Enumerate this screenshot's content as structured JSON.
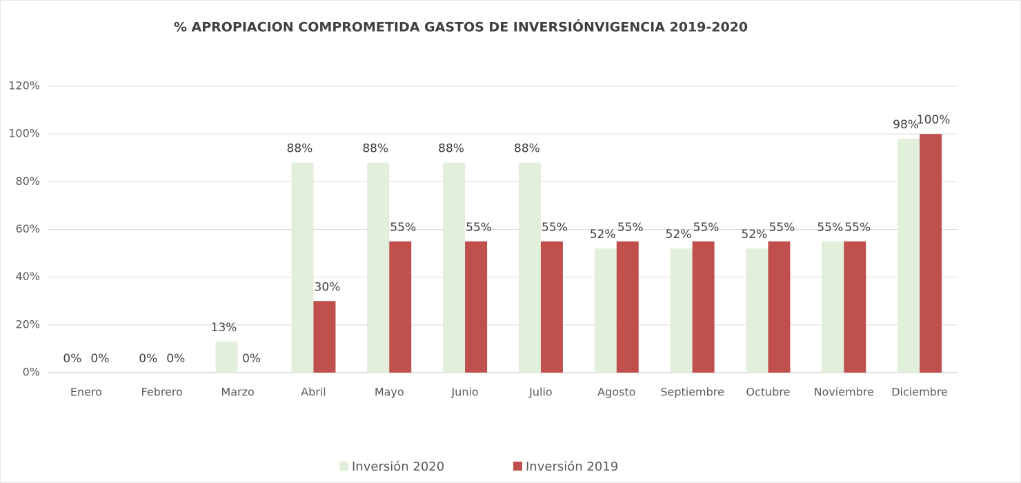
{
  "chart_data": {
    "type": "bar",
    "title": "% APROPIACION COMPROMETIDA GASTOS DE INVERSIÓNVIGENCIA 2019-2020",
    "categories": [
      "Enero",
      "Febrero",
      "Marzo",
      "Abril",
      "Mayo",
      "Junio",
      "Julio",
      "Agosto",
      "Septiembre",
      "Octubre",
      "Noviembre",
      "Diciembre"
    ],
    "series": [
      {
        "name": "Inversión 2020",
        "color": "#e2efda",
        "values": [
          0,
          0,
          13,
          88,
          88,
          88,
          88,
          52,
          52,
          52,
          55,
          98
        ],
        "value_labels": [
          "0%",
          "0%",
          "13%",
          "88%",
          "88%",
          "88%",
          "88%",
          "52%",
          "52%",
          "52%",
          "55%",
          "98%"
        ]
      },
      {
        "name": "Inversión 2019",
        "color": "#c0504d",
        "values": [
          0,
          0,
          0,
          30,
          55,
          55,
          55,
          55,
          55,
          55,
          55,
          100
        ],
        "value_labels": [
          "0%",
          "0%",
          "0%",
          "30%",
          "55%",
          "55%",
          "55%",
          "55%",
          "55%",
          "55%",
          "55%",
          "100%"
        ]
      }
    ],
    "ylim": [
      0,
      120
    ],
    "yticks": [
      {
        "value": 0,
        "label": "0%"
      },
      {
        "value": 20,
        "label": "20%"
      },
      {
        "value": 40,
        "label": "40%"
      },
      {
        "value": 60,
        "label": "60%"
      },
      {
        "value": 80,
        "label": "80%"
      },
      {
        "value": 100,
        "label": "100%"
      },
      {
        "value": 120,
        "label": "120%"
      }
    ],
    "grid": true,
    "legend": "bottom"
  }
}
